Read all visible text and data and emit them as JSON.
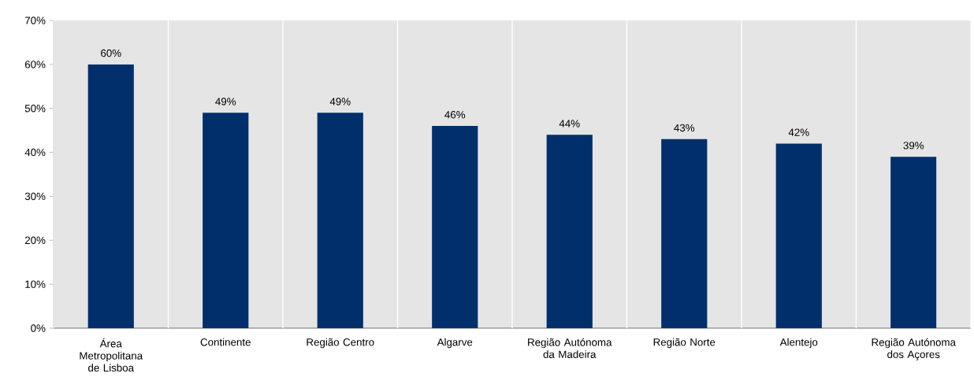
{
  "chart_data": {
    "type": "bar",
    "categories": [
      "Área Metropolitana de Lisboa",
      "Continente",
      "Região Centro",
      "Algarve",
      "Região Autónoma da Madeira",
      "Região Norte",
      "Alentejo",
      "Região Autónoma dos Açores"
    ],
    "values": [
      60,
      49,
      49,
      46,
      44,
      43,
      42,
      39
    ],
    "value_labels": [
      "60%",
      "49%",
      "49%",
      "46%",
      "44%",
      "43%",
      "42%",
      "39%"
    ],
    "color": "#002f6c",
    "ylim": [
      0,
      70
    ],
    "yticks": [
      {
        "value": 0,
        "label": "0%"
      },
      {
        "value": 10,
        "label": "10%"
      },
      {
        "value": 20,
        "label": "20%"
      },
      {
        "value": 30,
        "label": "30%"
      },
      {
        "value": 40,
        "label": "40%"
      },
      {
        "value": 50,
        "label": "50%"
      },
      {
        "value": 60,
        "label": "60%"
      },
      {
        "value": 70,
        "label": "70%"
      }
    ],
    "grid": "x"
  }
}
